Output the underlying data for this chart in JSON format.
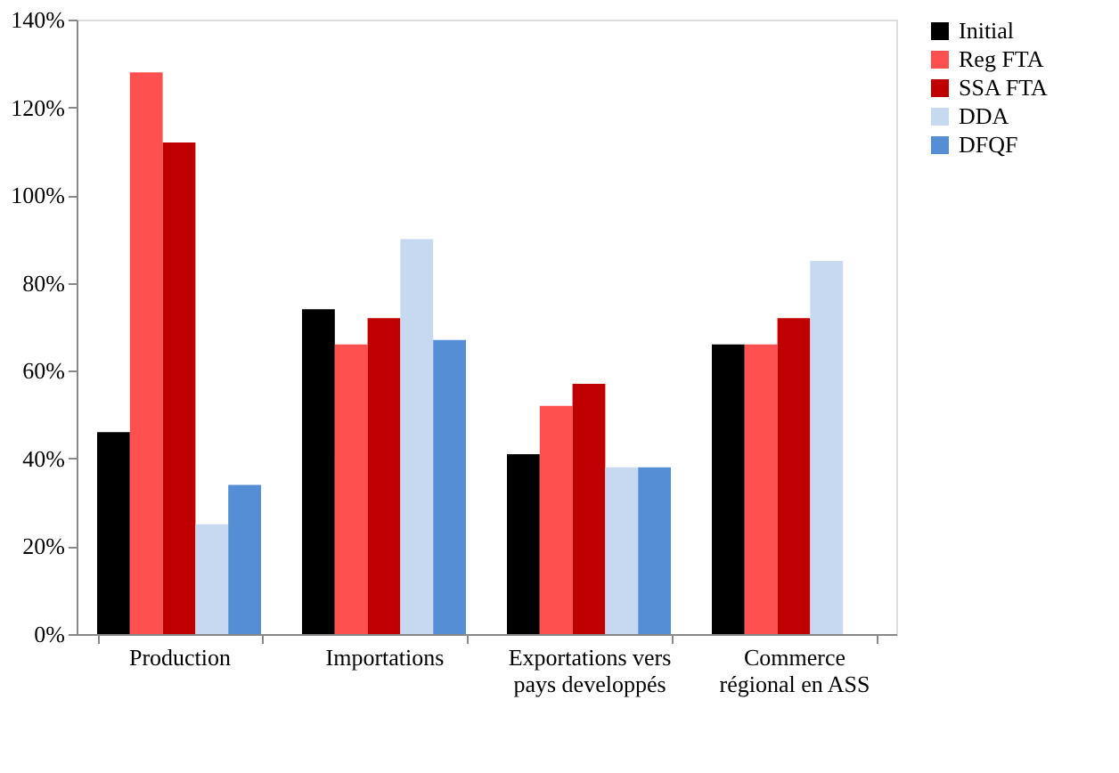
{
  "chart_data": {
    "type": "bar",
    "categories": [
      "Production",
      "Importations",
      "Exportations vers\npays developpés",
      "Commerce\nrégional en  ASS"
    ],
    "series": [
      {
        "name": "Initial",
        "color": "#000000",
        "values": [
          46,
          74,
          41,
          66
        ]
      },
      {
        "name": "Reg FTA",
        "color": "#ff5050",
        "values": [
          128,
          66,
          52,
          66
        ]
      },
      {
        "name": "SSA FTA",
        "color": "#c00000",
        "values": [
          112,
          72,
          57,
          72
        ]
      },
      {
        "name": "DDA",
        "color": "#c6d9f1",
        "values": [
          25,
          90,
          38,
          85
        ]
      },
      {
        "name": "DFQF",
        "color": "#558ed5",
        "values": [
          34,
          67,
          38,
          null
        ]
      }
    ],
    "ylim": [
      0,
      140
    ],
    "yticks": [
      {
        "value": 0,
        "label": "0%"
      },
      {
        "value": 20,
        "label": "20%"
      },
      {
        "value": 40,
        "label": "40%"
      },
      {
        "value": 60,
        "label": "60%"
      },
      {
        "value": 80,
        "label": "80%"
      },
      {
        "value": 100,
        "label": "100%"
      },
      {
        "value": 120,
        "label": "120%"
      },
      {
        "value": 140,
        "label": "140%"
      }
    ],
    "grid": false,
    "legend": "right"
  }
}
